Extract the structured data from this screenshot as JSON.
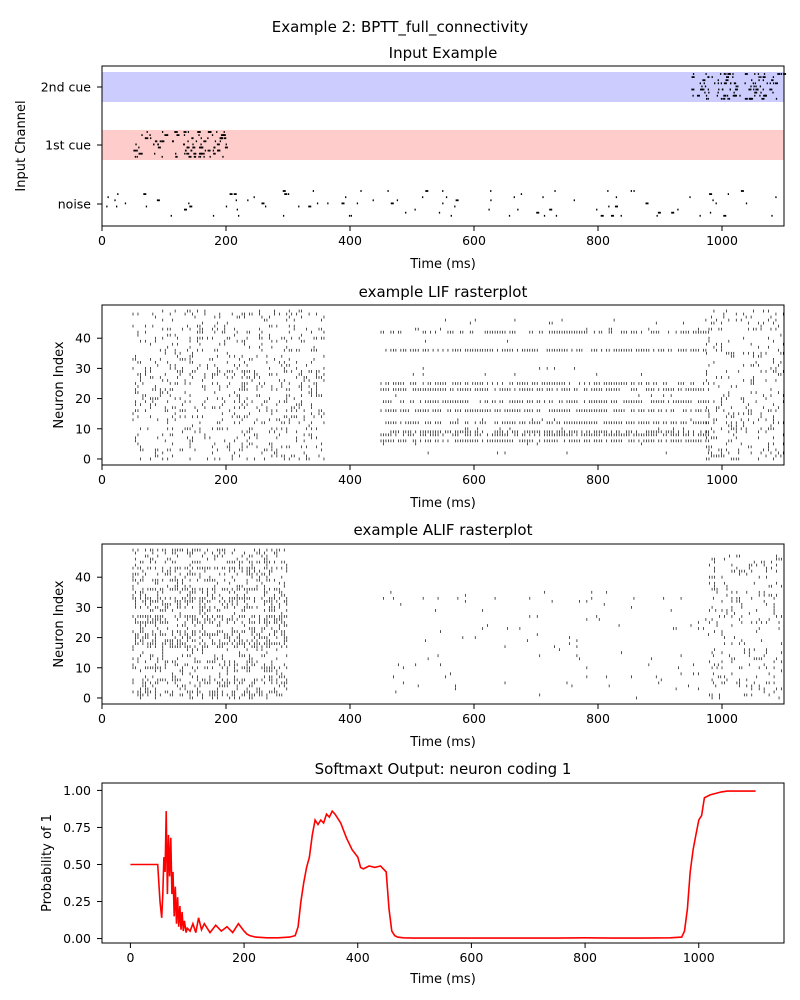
{
  "figure": {
    "suptitle": "Example 2: BPTT_full_connectivity"
  },
  "chart_data": [
    {
      "type": "scatter",
      "title": "Input Example",
      "xlabel": "Time (ms)",
      "ylabel": "Input Channel",
      "xlim": [
        0,
        1100
      ],
      "xticks": [
        0,
        200,
        400,
        600,
        800,
        1000
      ],
      "yticklabels": [
        "noise",
        "1st cue",
        "2nd cue"
      ],
      "bands": [
        {
          "label": "2nd cue",
          "color": "#ccccff",
          "x": [
            0,
            1100
          ]
        },
        {
          "label": "1st cue",
          "color": "#ffcccc",
          "x": [
            0,
            1100
          ]
        }
      ],
      "series": [
        {
          "label": "2nd cue",
          "time_range": [
            950,
            1100
          ],
          "density": "dense"
        },
        {
          "label": "1st cue",
          "time_range": [
            50,
            200
          ],
          "density": "dense"
        },
        {
          "label": "noise",
          "time_range": [
            0,
            1100
          ],
          "density": "sparse"
        }
      ]
    },
    {
      "type": "scatter",
      "title": "example LIF rasterplot",
      "xlabel": "Time (ms)",
      "ylabel": "Neuron Index",
      "xlim": [
        0,
        1100
      ],
      "ylim": [
        -2,
        51
      ],
      "xticks": [
        0,
        200,
        400,
        600,
        800,
        1000
      ],
      "yticks": [
        0,
        10,
        20,
        30,
        40
      ],
      "activity_epochs": [
        {
          "t": [
            50,
            360
          ],
          "neurons": [
            0,
            49
          ],
          "density": "medium"
        },
        {
          "t": [
            450,
            980
          ],
          "neurons": [
            0,
            47
          ],
          "density": "row-structured"
        },
        {
          "t": [
            975,
            1100
          ],
          "neurons": [
            0,
            49
          ],
          "density": "medium"
        }
      ]
    },
    {
      "type": "scatter",
      "title": "example ALIF rasterplot",
      "xlabel": "Time (ms)",
      "ylabel": "Neuron Index",
      "xlim": [
        0,
        1100
      ],
      "ylim": [
        -2,
        51
      ],
      "xticks": [
        0,
        200,
        400,
        600,
        800,
        1000
      ],
      "yticks": [
        0,
        10,
        20,
        30,
        40
      ],
      "activity_epochs": [
        {
          "t": [
            50,
            300
          ],
          "neurons": [
            0,
            49
          ],
          "density": "dense"
        },
        {
          "t": [
            450,
            1000
          ],
          "neurons": [
            0,
            35
          ],
          "density": "sparse"
        },
        {
          "t": [
            980,
            1100
          ],
          "neurons": [
            0,
            47
          ],
          "density": "medium"
        }
      ]
    },
    {
      "type": "line",
      "title": "Softmaxt Output: neuron coding 1",
      "xlabel": "Time (ms)",
      "ylabel": "Probability of 1",
      "xlim": [
        -50,
        1150
      ],
      "ylim": [
        -0.03,
        1.05
      ],
      "xticks": [
        0,
        200,
        400,
        600,
        800,
        1000
      ],
      "yticks": [
        "0.00",
        "0.25",
        "0.50",
        "0.75",
        "1.00"
      ],
      "color": "#ff0000",
      "x": [
        0,
        48,
        52,
        55,
        57,
        59,
        61,
        63,
        65,
        67,
        69,
        71,
        73,
        75,
        77,
        79,
        81,
        83,
        85,
        87,
        89,
        91,
        93,
        95,
        98,
        100,
        105,
        110,
        115,
        120,
        125,
        130,
        140,
        150,
        160,
        170,
        180,
        190,
        200,
        205,
        210,
        220,
        240,
        260,
        280,
        290,
        295,
        300,
        305,
        310,
        315,
        320,
        325,
        330,
        335,
        340,
        345,
        350,
        355,
        360,
        370,
        380,
        390,
        400,
        405,
        410,
        420,
        430,
        440,
        450,
        455,
        460,
        465,
        470,
        480,
        500,
        550,
        600,
        650,
        700,
        750,
        800,
        850,
        900,
        950,
        970,
        975,
        980,
        985,
        990,
        995,
        1000,
        1005,
        1010,
        1020,
        1030,
        1040,
        1050,
        1060,
        1070,
        1080,
        1090,
        1100
      ],
      "y": [
        0.5,
        0.5,
        0.25,
        0.14,
        0.3,
        0.55,
        0.45,
        0.86,
        0.3,
        0.7,
        0.42,
        0.68,
        0.3,
        0.45,
        0.15,
        0.35,
        0.1,
        0.28,
        0.08,
        0.22,
        0.06,
        0.18,
        0.05,
        0.12,
        0.04,
        0.07,
        0.05,
        0.1,
        0.04,
        0.14,
        0.06,
        0.1,
        0.04,
        0.09,
        0.05,
        0.08,
        0.04,
        0.1,
        0.05,
        0.03,
        0.02,
        0.01,
        0.005,
        0.005,
        0.01,
        0.02,
        0.08,
        0.25,
        0.38,
        0.48,
        0.55,
        0.7,
        0.8,
        0.77,
        0.8,
        0.78,
        0.84,
        0.82,
        0.86,
        0.84,
        0.78,
        0.68,
        0.6,
        0.55,
        0.48,
        0.47,
        0.49,
        0.48,
        0.49,
        0.45,
        0.2,
        0.05,
        0.02,
        0.01,
        0.005,
        0.003,
        0.003,
        0.003,
        0.003,
        0.003,
        0.003,
        0.005,
        0.003,
        0.003,
        0.005,
        0.01,
        0.05,
        0.2,
        0.45,
        0.6,
        0.7,
        0.8,
        0.83,
        0.95,
        0.97,
        0.98,
        0.99,
        0.995,
        0.995,
        0.995,
        0.995,
        0.995,
        0.995
      ]
    }
  ]
}
